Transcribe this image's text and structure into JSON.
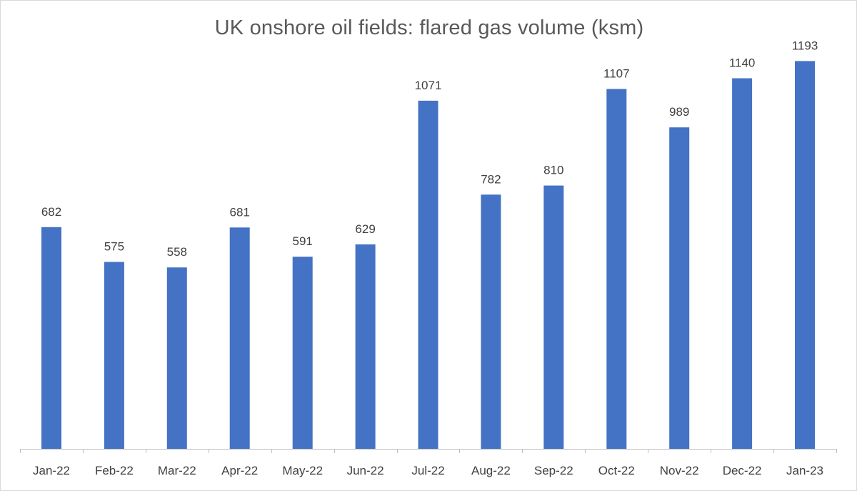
{
  "chart_data": {
    "type": "bar",
    "title": "UK onshore oil fields: flared gas volume (ksm)",
    "xlabel": "",
    "ylabel": "",
    "categories": [
      "Jan-22",
      "Feb-22",
      "Mar-22",
      "Apr-22",
      "May-22",
      "Jun-22",
      "Jul-22",
      "Aug-22",
      "Sep-22",
      "Oct-22",
      "Nov-22",
      "Dec-22",
      "Jan-23"
    ],
    "values": [
      682,
      575,
      558,
      681,
      591,
      629,
      1071,
      782,
      810,
      1107,
      989,
      1140,
      1193
    ],
    "ylim": [
      0,
      1240
    ],
    "grid": false,
    "legend": "none",
    "bar_color": "#4472c4",
    "data_labels": true
  }
}
